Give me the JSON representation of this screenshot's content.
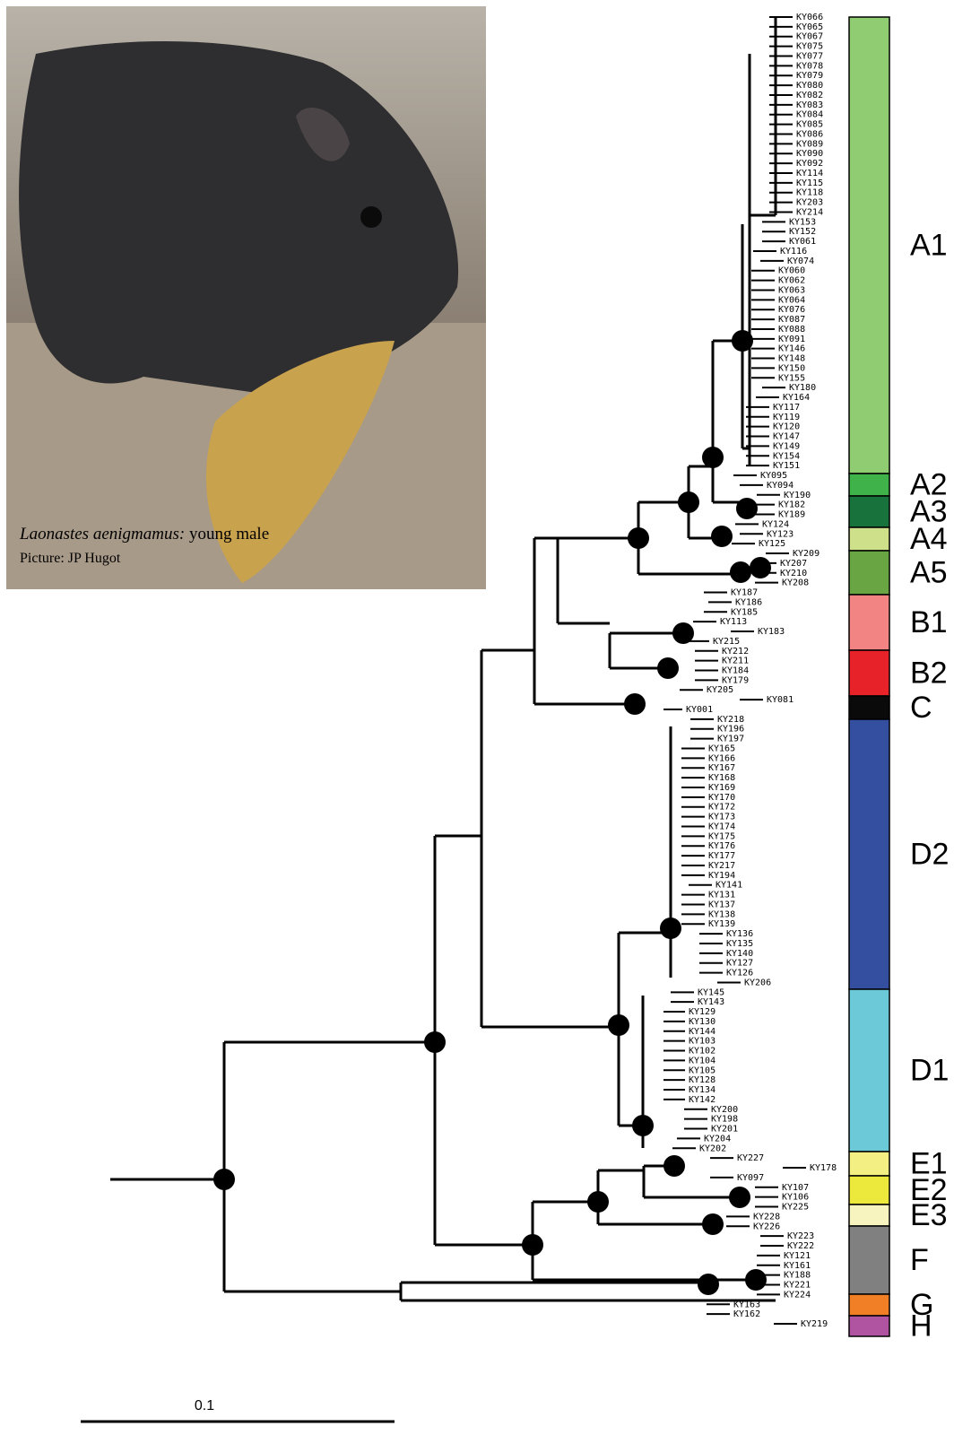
{
  "photo": {
    "caption_species": "Laonastes aenigmamus:",
    "caption_note": "young male",
    "credit": "Picture: JP Hugot"
  },
  "tree": {
    "leaves": [
      "KY066",
      "KY065",
      "KY067",
      "KY075",
      "KY077",
      "KY078",
      "KY079",
      "KY080",
      "KY082",
      "KY083",
      "KY084",
      "KY085",
      "KY086",
      "KY089",
      "KY090",
      "KY092",
      "KY114",
      "KY115",
      "KY118",
      "KY203",
      "KY214",
      "KY153",
      "KY152",
      "KY061",
      "KY116",
      "KY074",
      "KY060",
      "KY062",
      "KY063",
      "KY064",
      "KY076",
      "KY087",
      "KY088",
      "KY091",
      "KY146",
      "KY148",
      "KY150",
      "KY155",
      "KY180",
      "KY164",
      "KY117",
      "KY119",
      "KY120",
      "KY147",
      "KY149",
      "KY154",
      "KY151",
      "KY095",
      "KY094",
      "KY190",
      "KY182",
      "KY189",
      "KY124",
      "KY123",
      "KY125",
      "KY209",
      "KY207",
      "KY210",
      "KY208",
      "KY187",
      "KY186",
      "KY185",
      "KY113",
      "KY183",
      "KY215",
      "KY212",
      "KY211",
      "KY184",
      "KY179",
      "KY205",
      "KY081",
      "KY001",
      "KY218",
      "KY196",
      "KY197",
      "KY165",
      "KY166",
      "KY167",
      "KY168",
      "KY169",
      "KY170",
      "KY172",
      "KY173",
      "KY174",
      "KY175",
      "KY176",
      "KY177",
      "KY217",
      "KY194",
      "KY141",
      "KY131",
      "KY137",
      "KY138",
      "KY139",
      "KY136",
      "KY135",
      "KY140",
      "KY127",
      "KY126",
      "KY206",
      "KY145",
      "KY143",
      "KY129",
      "KY130",
      "KY144",
      "KY103",
      "KY102",
      "KY104",
      "KY105",
      "KY128",
      "KY134",
      "KY142",
      "KY200",
      "KY198",
      "KY201",
      "KY204",
      "KY202",
      "KY227",
      "KY178",
      "KY097",
      "KY107",
      "KY106",
      "KY225",
      "KY228",
      "KY226",
      "KY223",
      "KY222",
      "KY121",
      "KY161",
      "KY188",
      "KY221",
      "KY224",
      "KY163",
      "KY162",
      "KY219"
    ],
    "clades": [
      {
        "label": "A1",
        "color": "#8fcc72"
      },
      {
        "label": "A2",
        "color": "#3fb34a"
      },
      {
        "label": "A3",
        "color": "#17723c"
      },
      {
        "label": "A4",
        "color": "#cfe08a"
      },
      {
        "label": "A5",
        "color": "#6aa544"
      },
      {
        "label": "B1",
        "color": "#f28583"
      },
      {
        "label": "B2",
        "color": "#e82229"
      },
      {
        "label": "C",
        "color": "#0a0a0a"
      },
      {
        "label": "D2",
        "color": "#344ea0"
      },
      {
        "label": "D1",
        "color": "#6ccad8"
      },
      {
        "label": "E1",
        "color": "#f4ef82"
      },
      {
        "label": "E2",
        "color": "#ece93c"
      },
      {
        "label": "E3",
        "color": "#f8f4bf"
      },
      {
        "label": "F",
        "color": "#808080"
      },
      {
        "label": "G",
        "color": "#f07f26"
      },
      {
        "label": "H",
        "color": "#b054a2"
      }
    ]
  },
  "scale_bar": {
    "label": "0.1"
  }
}
